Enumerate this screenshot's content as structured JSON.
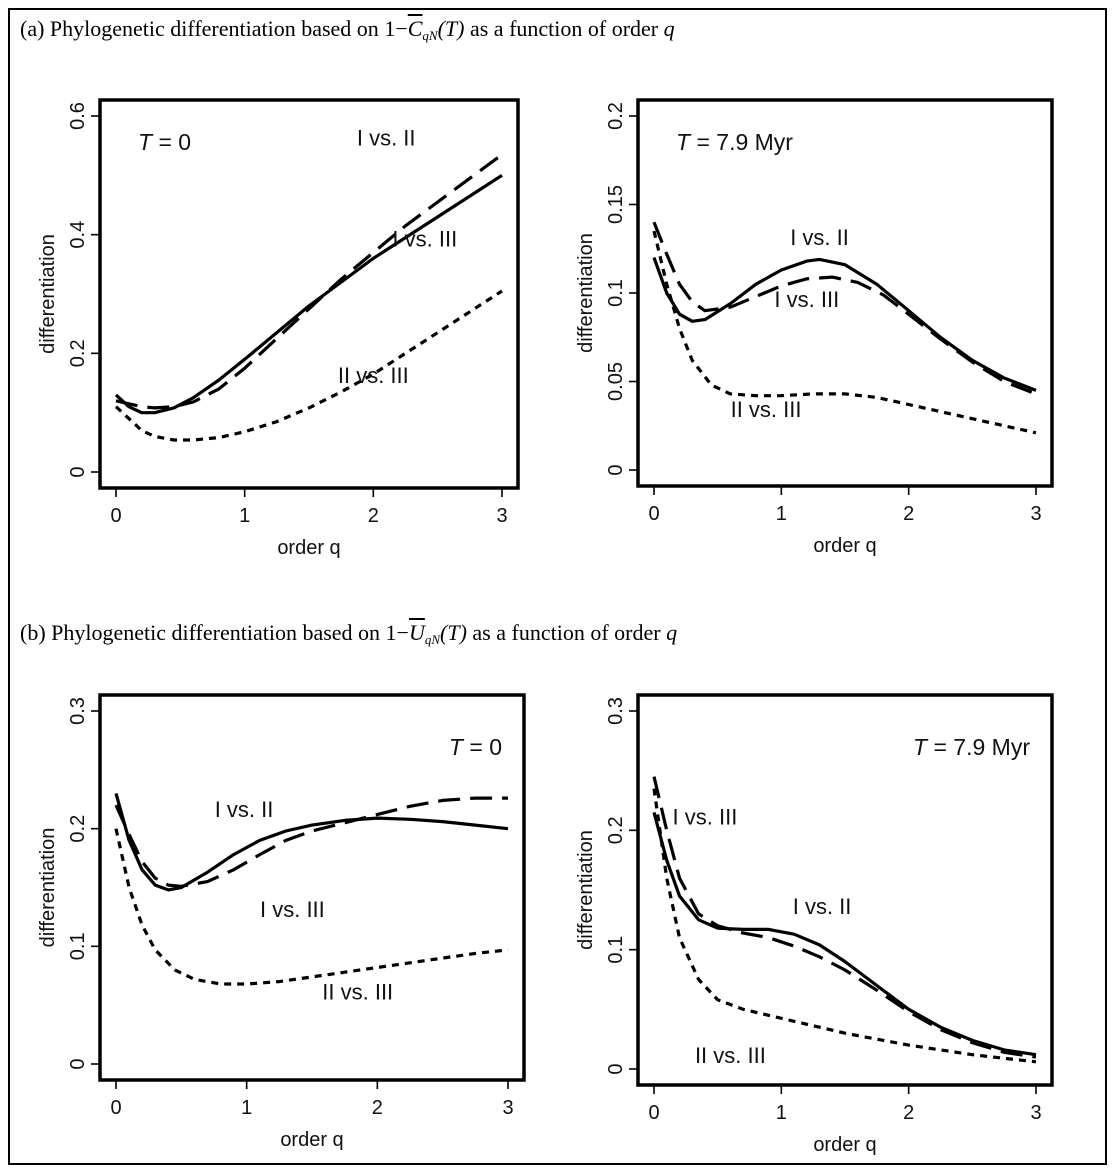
{
  "section_a": {
    "label": "(a) Phylogenetic differentiation based on",
    "expr_prefix": "1−",
    "expr_symbol": "C",
    "expr_sub": "qN",
    "expr_suffix": "(T)",
    "label_tail": "as a function of order",
    "order_var": "q"
  },
  "section_b": {
    "label": "(b) Phylogenetic differentiation based on",
    "expr_prefix": "1−",
    "expr_symbol": "U",
    "expr_sub": "qN",
    "expr_suffix": "(T)",
    "label_tail": "as a function of order",
    "order_var": "q"
  },
  "chart_data": [
    {
      "id": "a1",
      "type": "line",
      "xlabel": "order q",
      "ylabel": "differentiation",
      "xlim": [
        0,
        3
      ],
      "ylim": [
        0,
        0.6
      ],
      "xticks": [
        0,
        1,
        2,
        3
      ],
      "xtick_labels": [
        "0",
        "1",
        "2",
        "3"
      ],
      "yticks": [
        0,
        0.2,
        0.4,
        0.6
      ],
      "ytick_labels": [
        "0",
        "0.2",
        "0.4",
        "0.6"
      ],
      "t_label": "T = 0",
      "t_pos": "top-left",
      "series": [
        {
          "name": "I vs. II",
          "style": "dashed",
          "x": [
            0,
            0.1,
            0.2,
            0.3,
            0.45,
            0.6,
            0.8,
            1.0,
            1.25,
            1.5,
            1.75,
            2.0,
            2.25,
            2.5,
            2.75,
            3.0
          ],
          "y": [
            0.12,
            0.115,
            0.11,
            0.108,
            0.11,
            0.118,
            0.14,
            0.175,
            0.225,
            0.275,
            0.325,
            0.37,
            0.415,
            0.455,
            0.495,
            0.535
          ]
        },
        {
          "name": "I vs. III",
          "style": "solid",
          "x": [
            0,
            0.1,
            0.2,
            0.3,
            0.45,
            0.6,
            0.8,
            1.0,
            1.25,
            1.5,
            1.75,
            2.0,
            2.25,
            2.5,
            2.75,
            3.0
          ],
          "y": [
            0.13,
            0.11,
            0.1,
            0.1,
            0.108,
            0.125,
            0.155,
            0.19,
            0.235,
            0.28,
            0.32,
            0.36,
            0.395,
            0.43,
            0.465,
            0.5
          ]
        },
        {
          "name": "II vs. III",
          "style": "dotted",
          "x": [
            0,
            0.1,
            0.2,
            0.3,
            0.45,
            0.6,
            0.8,
            1.0,
            1.25,
            1.5,
            1.75,
            2.0,
            2.25,
            2.5,
            2.75,
            3.0
          ],
          "y": [
            0.11,
            0.09,
            0.07,
            0.06,
            0.054,
            0.054,
            0.058,
            0.068,
            0.085,
            0.108,
            0.135,
            0.165,
            0.2,
            0.235,
            0.27,
            0.305
          ]
        }
      ],
      "annotations": [
        {
          "text": "I vs. II",
          "x": 2.1,
          "y": 0.55
        },
        {
          "text": "I vs. III",
          "x": 2.4,
          "y": 0.38
        },
        {
          "text": "II vs. III",
          "x": 2.0,
          "y": 0.15
        }
      ]
    },
    {
      "id": "a2",
      "type": "line",
      "xlabel": "order q",
      "ylabel": "differentiation",
      "xlim": [
        0,
        3
      ],
      "ylim": [
        0,
        0.2
      ],
      "xticks": [
        0,
        1,
        2,
        3
      ],
      "xtick_labels": [
        "0",
        "1",
        "2",
        "3"
      ],
      "yticks": [
        0,
        0.05,
        0.1,
        0.15,
        0.2
      ],
      "ytick_labels": [
        "0",
        "0.05",
        "0.1",
        "0.15",
        "0.2"
      ],
      "t_label": "T = 7.9 Myr",
      "t_pos": "top-left",
      "series": [
        {
          "name": "I vs. II",
          "style": "solid",
          "x": [
            0,
            0.1,
            0.2,
            0.3,
            0.4,
            0.6,
            0.8,
            1.0,
            1.2,
            1.3,
            1.5,
            1.75,
            2.0,
            2.25,
            2.5,
            2.75,
            3.0
          ],
          "y": [
            0.12,
            0.1,
            0.088,
            0.084,
            0.085,
            0.094,
            0.105,
            0.113,
            0.118,
            0.119,
            0.116,
            0.105,
            0.09,
            0.075,
            0.062,
            0.052,
            0.045
          ]
        },
        {
          "name": "I vs. III",
          "style": "dashed",
          "x": [
            0,
            0.1,
            0.2,
            0.3,
            0.4,
            0.6,
            0.8,
            1.0,
            1.2,
            1.4,
            1.6,
            1.8,
            2.0,
            2.25,
            2.5,
            2.75,
            3.0
          ],
          "y": [
            0.14,
            0.122,
            0.105,
            0.095,
            0.09,
            0.092,
            0.098,
            0.104,
            0.108,
            0.109,
            0.106,
            0.099,
            0.088,
            0.074,
            0.061,
            0.05,
            0.043
          ]
        },
        {
          "name": "II vs. III",
          "style": "dotted",
          "x": [
            0,
            0.1,
            0.2,
            0.3,
            0.45,
            0.6,
            0.8,
            1.0,
            1.25,
            1.5,
            1.75,
            2.0,
            2.25,
            2.5,
            2.75,
            3.0
          ],
          "y": [
            0.135,
            0.105,
            0.08,
            0.062,
            0.048,
            0.043,
            0.042,
            0.042,
            0.043,
            0.043,
            0.041,
            0.037,
            0.033,
            0.029,
            0.025,
            0.021
          ]
        }
      ],
      "annotations": [
        {
          "text": "I vs. II",
          "x": 1.3,
          "y": 0.127
        },
        {
          "text": "I vs. III",
          "x": 1.2,
          "y": 0.092
        },
        {
          "text": "II vs. III",
          "x": 0.88,
          "y": 0.03
        }
      ]
    },
    {
      "id": "b1",
      "type": "line",
      "xlabel": "order q",
      "ylabel": "differentiation",
      "xlim": [
        0,
        3
      ],
      "ylim": [
        0,
        0.3
      ],
      "xticks": [
        0,
        1,
        2,
        3
      ],
      "xtick_labels": [
        "0",
        "1",
        "2",
        "3"
      ],
      "yticks": [
        0,
        0.1,
        0.2,
        0.3
      ],
      "ytick_labels": [
        "0",
        "0.1",
        "0.2",
        "0.3"
      ],
      "t_label": "T = 0",
      "t_pos": "top-right",
      "series": [
        {
          "name": "I vs. II",
          "style": "solid",
          "x": [
            0,
            0.1,
            0.2,
            0.3,
            0.4,
            0.5,
            0.7,
            0.9,
            1.1,
            1.3,
            1.5,
            1.75,
            2.0,
            2.25,
            2.5,
            2.75,
            3.0
          ],
          "y": [
            0.23,
            0.19,
            0.165,
            0.152,
            0.148,
            0.15,
            0.163,
            0.178,
            0.19,
            0.198,
            0.203,
            0.207,
            0.209,
            0.208,
            0.206,
            0.203,
            0.2
          ]
        },
        {
          "name": "I vs. III",
          "style": "dashed",
          "x": [
            0,
            0.1,
            0.2,
            0.3,
            0.4,
            0.5,
            0.7,
            0.9,
            1.1,
            1.3,
            1.5,
            1.75,
            2.0,
            2.25,
            2.5,
            2.75,
            3.0
          ],
          "y": [
            0.22,
            0.195,
            0.172,
            0.158,
            0.152,
            0.151,
            0.155,
            0.165,
            0.178,
            0.19,
            0.198,
            0.205,
            0.212,
            0.219,
            0.224,
            0.226,
            0.226
          ]
        },
        {
          "name": "II vs. III",
          "style": "dotted",
          "x": [
            0,
            0.1,
            0.2,
            0.3,
            0.45,
            0.6,
            0.8,
            1.0,
            1.25,
            1.5,
            1.75,
            2.0,
            2.25,
            2.5,
            2.75,
            3.0
          ],
          "y": [
            0.2,
            0.15,
            0.118,
            0.097,
            0.08,
            0.072,
            0.068,
            0.068,
            0.07,
            0.074,
            0.078,
            0.082,
            0.086,
            0.09,
            0.094,
            0.097
          ]
        }
      ],
      "annotations": [
        {
          "text": "I vs. II",
          "x": 0.98,
          "y": 0.21
        },
        {
          "text": "I vs. III",
          "x": 1.35,
          "y": 0.125
        },
        {
          "text": "II vs. III",
          "x": 1.85,
          "y": 0.055
        }
      ]
    },
    {
      "id": "b2",
      "type": "line",
      "xlabel": "order q",
      "ylabel": "differentiation",
      "xlim": [
        0,
        3
      ],
      "ylim": [
        0,
        0.3
      ],
      "xticks": [
        0,
        1,
        2,
        3
      ],
      "xtick_labels": [
        "0",
        "1",
        "2",
        "3"
      ],
      "yticks": [
        0,
        0.1,
        0.2,
        0.3
      ],
      "ytick_labels": [
        "0",
        "0.1",
        "0.2",
        "0.3"
      ],
      "t_label": "T = 7.9 Myr",
      "t_pos": "top-right",
      "series": [
        {
          "name": "I vs. II",
          "style": "solid",
          "x": [
            0,
            0.1,
            0.2,
            0.35,
            0.5,
            0.7,
            0.9,
            1.1,
            1.3,
            1.5,
            1.75,
            2.0,
            2.25,
            2.5,
            2.75,
            3.0
          ],
          "y": [
            0.215,
            0.175,
            0.145,
            0.125,
            0.118,
            0.117,
            0.117,
            0.113,
            0.104,
            0.09,
            0.07,
            0.05,
            0.035,
            0.024,
            0.016,
            0.012
          ]
        },
        {
          "name": "I vs. III",
          "style": "dashed",
          "x": [
            0,
            0.1,
            0.2,
            0.35,
            0.5,
            0.7,
            0.9,
            1.1,
            1.3,
            1.5,
            1.75,
            2.0,
            2.25,
            2.5,
            2.75,
            3.0
          ],
          "y": [
            0.245,
            0.2,
            0.16,
            0.13,
            0.12,
            0.114,
            0.11,
            0.103,
            0.094,
            0.083,
            0.066,
            0.048,
            0.033,
            0.022,
            0.014,
            0.01
          ]
        },
        {
          "name": "II vs. III",
          "style": "dotted",
          "x": [
            0,
            0.1,
            0.2,
            0.35,
            0.5,
            0.7,
            0.9,
            1.1,
            1.3,
            1.5,
            1.75,
            2.0,
            2.25,
            2.5,
            2.75,
            3.0
          ],
          "y": [
            0.235,
            0.16,
            0.11,
            0.075,
            0.058,
            0.05,
            0.045,
            0.04,
            0.035,
            0.03,
            0.025,
            0.02,
            0.016,
            0.012,
            0.009,
            0.006
          ]
        }
      ],
      "annotations": [
        {
          "text": "I vs. III",
          "x": 0.4,
          "y": 0.205
        },
        {
          "text": "I vs. II",
          "x": 1.32,
          "y": 0.13
        },
        {
          "text": "II vs. III",
          "x": 0.6,
          "y": 0.005
        }
      ]
    }
  ]
}
